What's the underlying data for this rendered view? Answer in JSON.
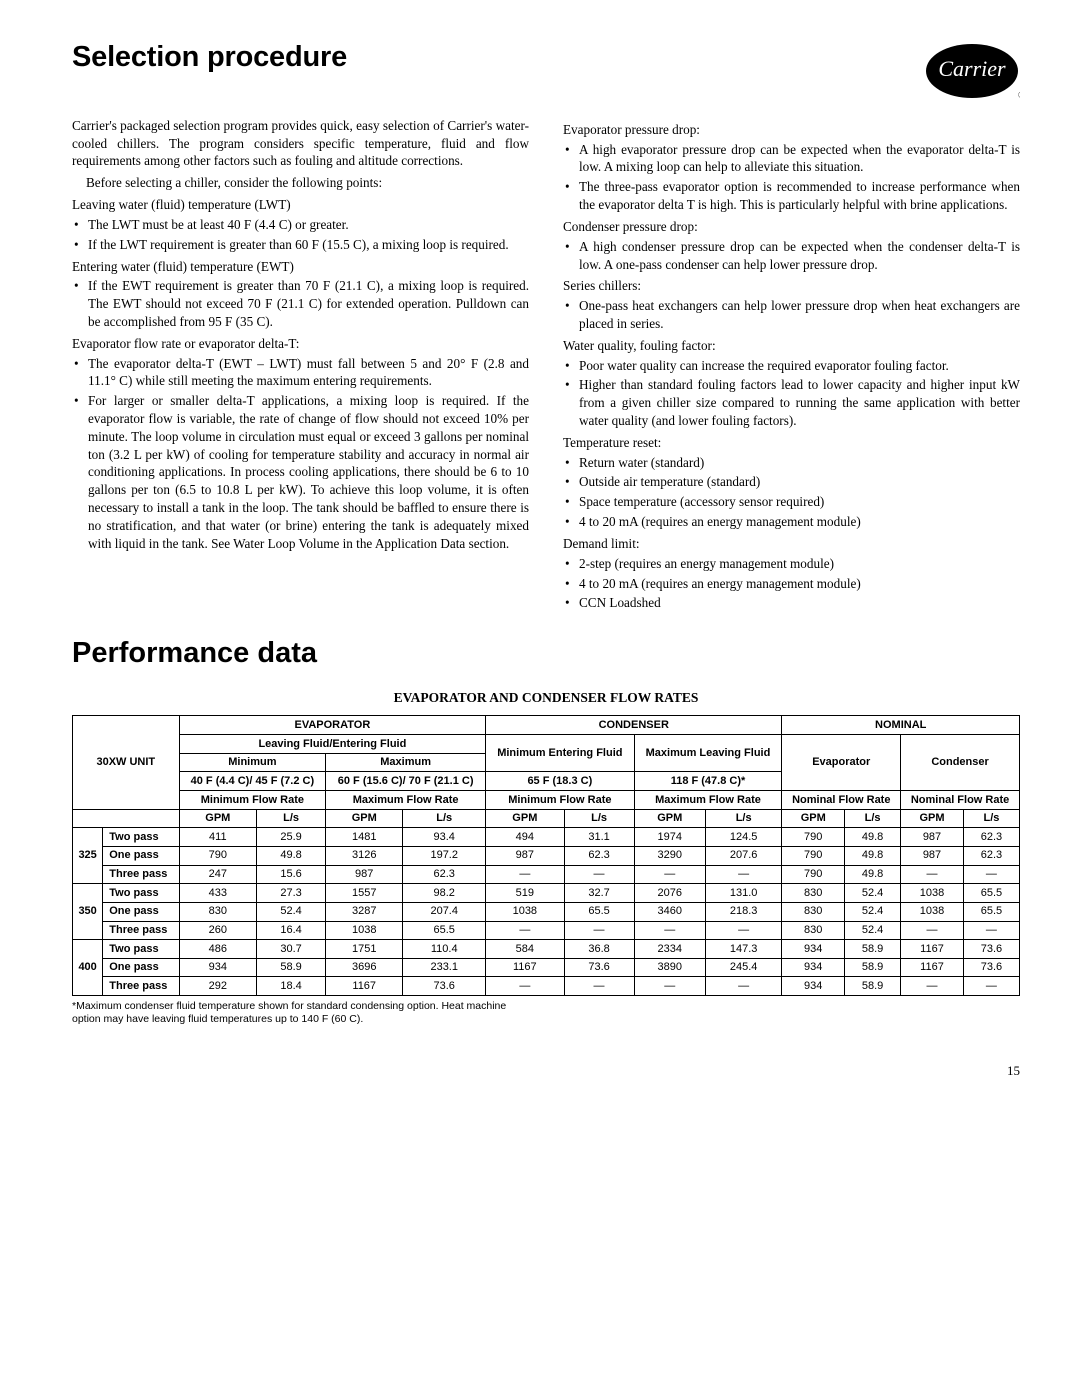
{
  "page_number": "15",
  "logo_text": "Carrier",
  "headings": {
    "h1": "Selection procedure",
    "h2": "Performance data",
    "table_title": "EVAPORATOR AND CONDENSER FLOW RATES"
  },
  "left_col": {
    "p1": "Carrier's packaged selection program provides quick, easy selection of Carrier's water-cooled chillers. The program considers specific temperature, fluid and flow requirements among other factors such as fouling and altitude corrections.",
    "p2": "Before selecting a chiller, consider the following points:",
    "sub1": "Leaving water (fluid) temperature (LWT)",
    "sub1_bullets": [
      "The LWT must be at least 40 F (4.4 C) or greater.",
      "If the LWT requirement is greater than 60 F (15.5 C), a mixing loop is required."
    ],
    "sub2": "Entering water (fluid) temperature (EWT)",
    "sub2_bullets": [
      "If the EWT requirement is greater than 70 F (21.1 C), a mixing loop is required. The EWT should not exceed 70 F (21.1 C) for extended operation. Pulldown can be accomplished from 95 F (35 C)."
    ],
    "sub3": "Evaporator flow rate or evaporator delta-T:",
    "sub3_bullets": [
      "The evaporator delta-T (EWT – LWT) must fall between 5 and 20° F (2.8 and 11.1° C) while still meeting the maximum entering requirements.",
      "For larger or smaller delta-T applications, a mixing loop is required. If the evaporator flow is variable, the rate of change of flow should not exceed 10% per minute. The loop volume in circulation must equal or exceed 3 gallons per nominal ton (3.2 L per kW) of cooling for temperature stability and accuracy in normal air conditioning applications. In process cooling applications, there should be 6 to 10 gallons per ton (6.5 to 10.8 L per kW). To achieve this loop volume, it is often necessary to install a tank in the loop. The tank should be baffled to ensure there is no stratification, and that water (or brine) entering the tank is adequately mixed with liquid in the tank. See Water Loop Volume in the Application Data section."
    ]
  },
  "right_col": {
    "sub1": "Evaporator pressure drop:",
    "sub1_bullets": [
      "A high evaporator pressure drop can be expected when the evaporator delta-T is low. A mixing loop can help to alleviate this situation.",
      "The three-pass evaporator option is recommended to increase performance when the evaporator delta T is high. This is particularly helpful with brine applications."
    ],
    "sub2": "Condenser pressure drop:",
    "sub2_bullets": [
      "A high condenser pressure drop can be expected when the condenser delta-T is low. A one-pass condenser can help lower pressure drop."
    ],
    "sub3": "Series chillers:",
    "sub3_bullets": [
      "One-pass heat exchangers can help lower pressure drop when heat exchangers are placed in series."
    ],
    "sub4": "Water quality, fouling factor:",
    "sub4_bullets": [
      "Poor water quality can increase the required evaporator fouling factor.",
      "Higher than standard fouling factors lead to lower capacity and higher input kW from a given chiller size compared to running the same application with better water quality (and lower fouling factors)."
    ],
    "sub5": "Temperature reset:",
    "sub5_bullets": [
      "Return water (standard)",
      "Outside air temperature (standard)",
      "Space temperature (accessory sensor required)",
      "4 to 20 mA (requires an energy management module)"
    ],
    "sub6": "Demand limit:",
    "sub6_bullets": [
      "2-step (requires an energy management module)",
      "4 to 20 mA (requires an energy management module)",
      "CCN Loadshed"
    ]
  },
  "table": {
    "header": {
      "unit_label": "30XW UNIT",
      "evap": "EVAPORATOR",
      "cond": "CONDENSER",
      "nom": "NOMINAL",
      "leaving_entering": "Leaving Fluid/Entering Fluid",
      "min": "Minimum",
      "max": "Maximum",
      "min_entering_fluid": "Minimum Entering Fluid",
      "max_leaving_fluid": "Maximum Leaving Fluid",
      "evap_col": "Evaporator",
      "cond_col": "Condenser",
      "temp1": "40 F (4.4 C)/ 45 F (7.2 C)",
      "temp2": "60 F (15.6 C)/ 70 F (21.1 C)",
      "temp3": "65 F (18.3 C)",
      "temp4": "118 F (47.8 C)*",
      "min_flow": "Minimum Flow Rate",
      "max_flow": "Maximum Flow Rate",
      "nom_flow": "Nominal Flow Rate",
      "gpm": "GPM",
      "ls": "L/s"
    },
    "groups": [
      {
        "size": "325",
        "rows": [
          {
            "label": "Two pass",
            "cells": [
              "411",
              "25.9",
              "1481",
              "93.4",
              "494",
              "31.1",
              "1974",
              "124.5",
              "790",
              "49.8",
              "987",
              "62.3"
            ]
          },
          {
            "label": "One pass",
            "cells": [
              "790",
              "49.8",
              "3126",
              "197.2",
              "987",
              "62.3",
              "3290",
              "207.6",
              "790",
              "49.8",
              "987",
              "62.3"
            ]
          },
          {
            "label": "Three pass",
            "cells": [
              "247",
              "15.6",
              "987",
              "62.3",
              "—",
              "—",
              "—",
              "—",
              "790",
              "49.8",
              "—",
              "—"
            ]
          }
        ]
      },
      {
        "size": "350",
        "rows": [
          {
            "label": "Two pass",
            "cells": [
              "433",
              "27.3",
              "1557",
              "98.2",
              "519",
              "32.7",
              "2076",
              "131.0",
              "830",
              "52.4",
              "1038",
              "65.5"
            ]
          },
          {
            "label": "One pass",
            "cells": [
              "830",
              "52.4",
              "3287",
              "207.4",
              "1038",
              "65.5",
              "3460",
              "218.3",
              "830",
              "52.4",
              "1038",
              "65.5"
            ]
          },
          {
            "label": "Three pass",
            "cells": [
              "260",
              "16.4",
              "1038",
              "65.5",
              "—",
              "—",
              "—",
              "—",
              "830",
              "52.4",
              "—",
              "—"
            ]
          }
        ]
      },
      {
        "size": "400",
        "rows": [
          {
            "label": "Two pass",
            "cells": [
              "486",
              "30.7",
              "1751",
              "110.4",
              "584",
              "36.8",
              "2334",
              "147.3",
              "934",
              "58.9",
              "1167",
              "73.6"
            ]
          },
          {
            "label": "One pass",
            "cells": [
              "934",
              "58.9",
              "3696",
              "233.1",
              "1167",
              "73.6",
              "3890",
              "245.4",
              "934",
              "58.9",
              "1167",
              "73.6"
            ]
          },
          {
            "label": "Three pass",
            "cells": [
              "292",
              "18.4",
              "1167",
              "73.6",
              "—",
              "—",
              "—",
              "—",
              "934",
              "58.9",
              "—",
              "—"
            ]
          }
        ]
      }
    ]
  },
  "footnote": "*Maximum condenser fluid temperature shown for standard condensing option. Heat machine option may have leaving fluid temperatures up to 140 F (60 C)."
}
